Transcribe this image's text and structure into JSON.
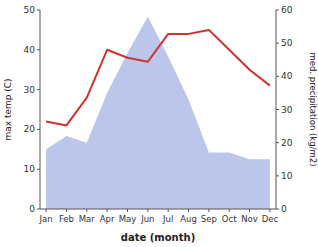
{
  "chart_data": {
    "type": "line",
    "categories": [
      "Jan",
      "Feb",
      "Mar",
      "Apr",
      "May",
      "Jun",
      "Jul",
      "Aug",
      "Sep",
      "Oct",
      "Nov",
      "Dec"
    ],
    "x_label": "date (month)",
    "y_label": "max temp (C)",
    "y2_label": "med. precipitation (kg/m2)",
    "ylim": [
      0,
      50
    ],
    "yticks": [
      0,
      10,
      20,
      30,
      40,
      50
    ],
    "y2lim": [
      0,
      60
    ],
    "y2ticks": [
      0,
      10,
      20,
      30,
      40,
      50,
      60
    ],
    "grid": false,
    "series": [
      {
        "type": "area",
        "axis": "y2",
        "color": "#b0bce8",
        "values": [
          18,
          22,
          20,
          35,
          47,
          58,
          46,
          33,
          17,
          17,
          15,
          15
        ]
      },
      {
        "type": "line",
        "color": "#cc3333",
        "values": [
          22,
          21,
          28,
          40,
          38,
          37,
          44,
          44,
          45,
          40,
          35,
          31
        ]
      }
    ]
  }
}
